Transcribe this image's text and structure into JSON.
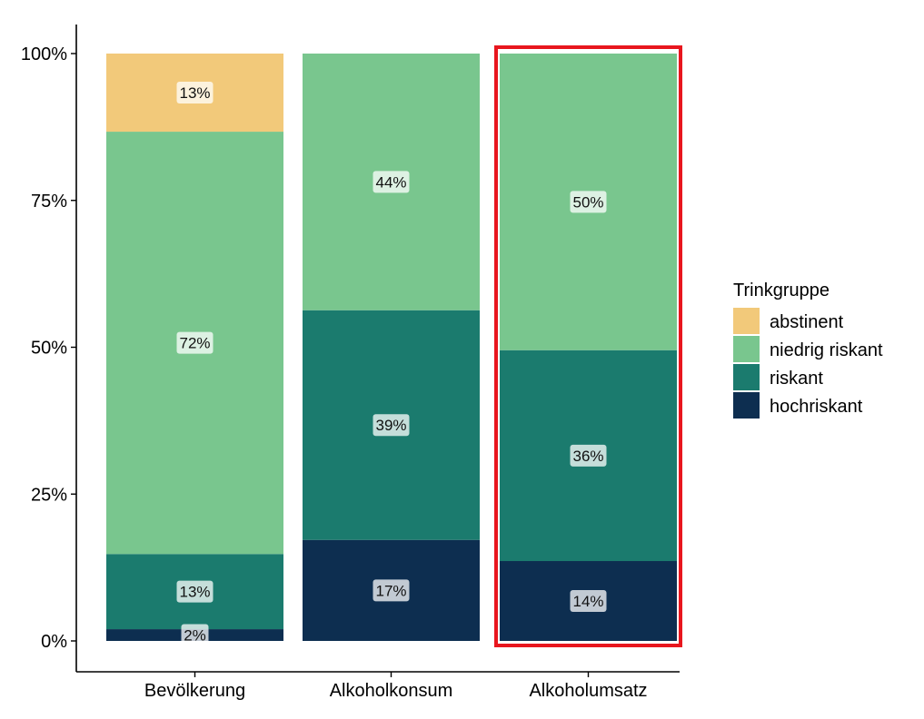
{
  "chart_data": {
    "type": "bar",
    "stacked": true,
    "normalized": true,
    "categories": [
      "Bevölkerung",
      "Alkoholkonsum",
      "Alkoholumsatz"
    ],
    "series": [
      {
        "name": "hochriskant",
        "color": "#0D2E50",
        "values": [
          2.0,
          17.2,
          13.6
        ],
        "labels": [
          "2%",
          "17%",
          "14%"
        ]
      },
      {
        "name": "riskant",
        "color": "#1B7B6E",
        "values": [
          12.8,
          39.1,
          35.9
        ],
        "labels": [
          "13%",
          "39%",
          "36%"
        ]
      },
      {
        "name": "niedrig riskant",
        "color": "#79C68E",
        "values": [
          71.9,
          43.7,
          50.5
        ],
        "labels": [
          "72%",
          "44%",
          "50%"
        ]
      },
      {
        "name": "abstinent",
        "color": "#F2C97A",
        "values": [
          13.3,
          0,
          0
        ],
        "labels": [
          "13%",
          null,
          null
        ]
      }
    ],
    "ylim": [
      0,
      100
    ],
    "yticks": [
      0,
      25,
      50,
      75,
      100
    ],
    "ytick_labels": [
      "0%",
      "25%",
      "50%",
      "75%",
      "100%"
    ],
    "xlabel": "",
    "ylabel": "",
    "legend": {
      "title": "Trinkgruppe",
      "placement": "right",
      "entries": [
        "abstinent",
        "niedrig riskant",
        "riskant",
        "hochriskant"
      ]
    },
    "highlight": {
      "category": "Alkoholumsatz",
      "color": "#E8161E"
    },
    "grid": false
  }
}
